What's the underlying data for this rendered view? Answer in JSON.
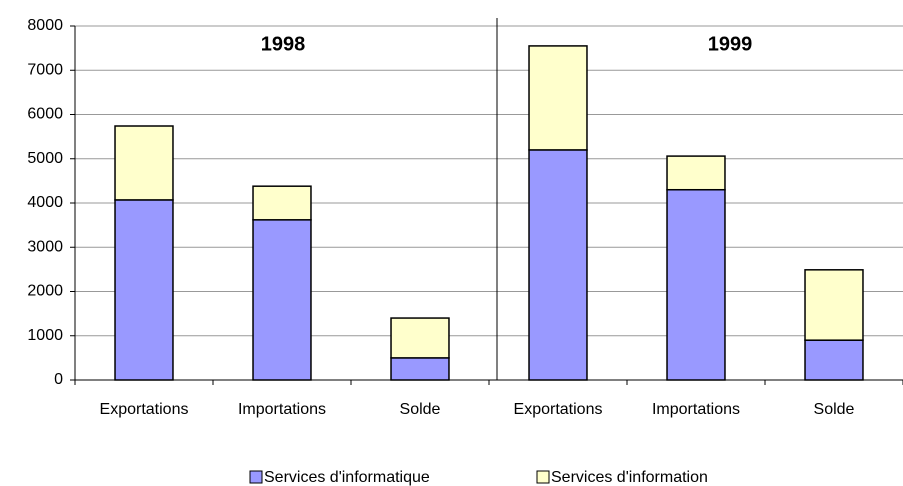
{
  "chart_data": {
    "type": "stacked_bar",
    "categories": [
      "Exportations",
      "Importations",
      "Solde",
      "Exportations",
      "Importations",
      "Solde"
    ],
    "series": [
      {
        "name": "Services d'informatique",
        "color": "#9999ff",
        "values": [
          4070,
          3620,
          500,
          5200,
          4300,
          900
        ]
      },
      {
        "name": "Services d'information",
        "color": "#ffffcc",
        "values": [
          1670,
          760,
          900,
          2350,
          760,
          1590
        ]
      }
    ],
    "annotations": [
      "1998",
      "1999"
    ],
    "ylim": [
      0,
      8000
    ],
    "yticks": [
      0,
      1000,
      2000,
      3000,
      4000,
      5000,
      6000,
      7000,
      8000
    ],
    "grid": true
  }
}
